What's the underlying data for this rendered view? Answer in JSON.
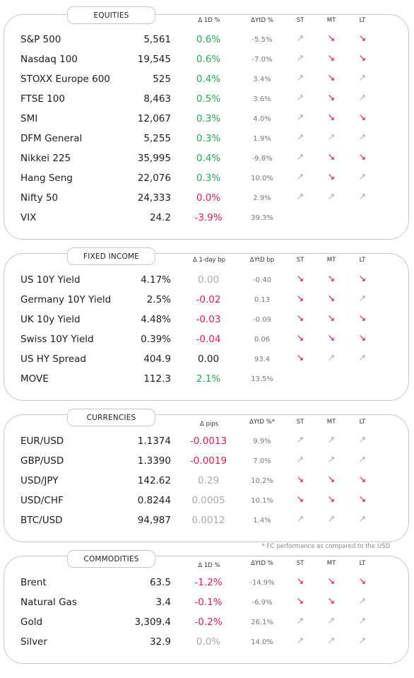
{
  "equities": {
    "title": "EQUITIES",
    "headers": {
      "d": "Δ 1D %",
      "ytd": "ΔYtD %",
      "st": "ST",
      "mt": "MT",
      "lt": "LT"
    },
    "rows": [
      {
        "name": "S&P 500",
        "last": "5,561",
        "d": "0.6%",
        "d_tone": "pos",
        "ytd": "-5.5%",
        "st": "up",
        "mt": "down",
        "lt": "down"
      },
      {
        "name": "Nasdaq 100",
        "last": "19,545",
        "d": "0.6%",
        "d_tone": "pos",
        "ytd": "-7.0%",
        "st": "up",
        "mt": "down",
        "lt": "down"
      },
      {
        "name": "STOXX Europe 600",
        "last": "525",
        "d": "0.4%",
        "d_tone": "pos",
        "ytd": "3.4%",
        "st": "up",
        "mt": "down",
        "lt": "up"
      },
      {
        "name": "FTSE 100",
        "last": "8,463",
        "d": "0.5%",
        "d_tone": "pos",
        "ytd": "3.6%",
        "st": "up",
        "mt": "down",
        "lt": "up"
      },
      {
        "name": "SMI",
        "last": "12,067",
        "d": "0.3%",
        "d_tone": "pos",
        "ytd": "4.0%",
        "st": "up",
        "mt": "down",
        "lt": "down"
      },
      {
        "name": "DFM General",
        "last": "5,255",
        "d": "0.3%",
        "d_tone": "pos",
        "ytd": "1.9%",
        "st": "up",
        "mt": "up",
        "lt": "up"
      },
      {
        "name": "Nikkei 225",
        "last": "35,995",
        "d": "0.4%",
        "d_tone": "pos",
        "ytd": "-9.8%",
        "st": "up",
        "mt": "down",
        "lt": "down"
      },
      {
        "name": "Hang Seng",
        "last": "22,076",
        "d": "0.3%",
        "d_tone": "pos",
        "ytd": "10.0%",
        "st": "up",
        "mt": "down",
        "lt": "up"
      },
      {
        "name": "Nifty  50",
        "last": "24,333",
        "d": "0.0%",
        "d_tone": "neg",
        "ytd": "2.9%",
        "st": "up",
        "mt": "up",
        "lt": "up"
      },
      {
        "name": "VIX",
        "last": "24.2",
        "d": "-3.9%",
        "d_tone": "neg",
        "ytd": "39.3%",
        "st": "",
        "mt": "",
        "lt": ""
      }
    ]
  },
  "fixed_income": {
    "title": "FIXED INCOME",
    "headers": {
      "d": "Δ 1-day bp",
      "ytd": "ΔYtD bp",
      "st": "ST",
      "mt": "MT",
      "lt": "LT"
    },
    "rows": [
      {
        "name": "US 10Y Yield",
        "last": "4.17%",
        "d": "0.00",
        "d_tone": "neu",
        "ytd": "-0.40",
        "st": "down",
        "mt": "down",
        "lt": "down"
      },
      {
        "name": "Germany 10Y Yield",
        "last": "2.5%",
        "d": "-0.02",
        "d_tone": "neg",
        "ytd": "0.13",
        "st": "down",
        "mt": "down",
        "lt": "up"
      },
      {
        "name": "UK 10y Yield",
        "last": "4.48%",
        "d": "-0.03",
        "d_tone": "neg",
        "ytd": "-0.09",
        "st": "down",
        "mt": "down",
        "lt": "down"
      },
      {
        "name": "Swiss 10Y Yield",
        "last": "0.39%",
        "d": "-0.04",
        "d_tone": "neg",
        "ytd": "0.06",
        "st": "down",
        "mt": "down",
        "lt": "down"
      },
      {
        "name": "US HY Spread",
        "last": "404.9",
        "d": "0.00",
        "d_tone": "blk",
        "ytd": "93.4",
        "st": "down",
        "mt": "up",
        "lt": "up"
      },
      {
        "name": "MOVE",
        "last": "112.3",
        "d": "2.1%",
        "d_tone": "pos",
        "ytd": "13.5%",
        "st": "",
        "mt": "",
        "lt": ""
      }
    ]
  },
  "currencies": {
    "title": "CURRENCIES",
    "headers": {
      "d": "Δ pips",
      "ytd": "ΔYtD %*",
      "st": "ST",
      "mt": "MT",
      "lt": "LT"
    },
    "rows": [
      {
        "name": "EUR/USD",
        "last": "1.1374",
        "d": "-0.0013",
        "d_tone": "neg",
        "ytd": "9.9%",
        "st": "up",
        "mt": "up",
        "lt": "up"
      },
      {
        "name": "GBP/USD",
        "last": "1.3390",
        "d": "-0.0019",
        "d_tone": "neg",
        "ytd": "7.0%",
        "st": "up",
        "mt": "up",
        "lt": "up"
      },
      {
        "name": "USD/JPY",
        "last": "142.62",
        "d": "0.29",
        "d_tone": "neu",
        "ytd": "10.2%",
        "st": "down",
        "mt": "down",
        "lt": "down"
      },
      {
        "name": "USD/CHF",
        "last": "0.8244",
        "d": "0.0005",
        "d_tone": "neu",
        "ytd": "10.1%",
        "st": "down",
        "mt": "down",
        "lt": "down"
      },
      {
        "name": "BTC/USD",
        "last": "94,987",
        "d": "0.0012",
        "d_tone": "neu",
        "ytd": "1.4%",
        "st": "up",
        "mt": "up",
        "lt": "up"
      }
    ],
    "note": "* FC performance as compared to the USD"
  },
  "commodities": {
    "title": "COMMODITIES",
    "headers": {
      "d": "Δ 1D %",
      "ytd": "ΔYtD %",
      "st": "ST",
      "mt": "MT",
      "lt": "LT"
    },
    "rows": [
      {
        "name": "Brent",
        "last": "63.5",
        "d": "-1.2%",
        "d_tone": "neg",
        "ytd": "-14.9%",
        "st": "down",
        "mt": "down",
        "lt": "down"
      },
      {
        "name": "Natural Gas",
        "last": "3.4",
        "d": "-0.1%",
        "d_tone": "neg",
        "ytd": "-6.9%",
        "st": "down",
        "mt": "down",
        "lt": "up"
      },
      {
        "name": "Gold",
        "last": "3,309.4",
        "d": "-0.2%",
        "d_tone": "neg",
        "ytd": "26.1%",
        "st": "up",
        "mt": "up",
        "lt": "up"
      },
      {
        "name": "Silver",
        "last": "32.9",
        "d": "0.0%",
        "d_tone": "neu",
        "ytd": "14.0%",
        "st": "up",
        "mt": "up",
        "lt": "up"
      }
    ]
  },
  "colors": {
    "up_arrow": "#b8aca4",
    "down_arrow": "#c21f3e",
    "positive": "#2aa65a",
    "negative": "#d4204f",
    "neutral": "#aaaaaa"
  },
  "icons": {
    "up": "arrow-up-right-icon",
    "down": "arrow-down-right-icon"
  }
}
